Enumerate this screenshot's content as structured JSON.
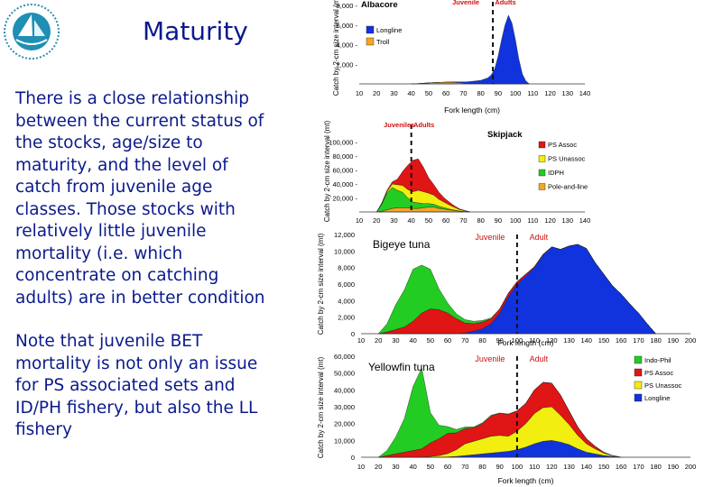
{
  "slide": {
    "title": "Maturity",
    "paragraph1": "There is a close relationship between the current status of the stocks, age/size to maturity, and the level of catch from juvenile age classes. Those stocks with relatively little juvenile mortality (i.e. which concentrate on catching adults) are in better condition",
    "paragraph2": "Note that juvenile BET mortality is not only an issue for PS associated sets and ID/PH fishery, but also the LL fishery"
  },
  "colors": {
    "text": "#0b1a8c",
    "longline": "#1133dd",
    "ps_assoc": "#e01515",
    "ps_unassoc": "#f2ee10",
    "indo_phil": "#22cc22",
    "troll": "#f5a623",
    "pole_and_line": "#f5a623",
    "juvenile_arrow": "#d01010"
  },
  "chart_data": [
    {
      "type": "area",
      "title": "Albacore",
      "ylabel": "Catch by 2-cm size interval (mt)",
      "xlabel": "Fork length (cm)",
      "xticks": [
        "10",
        "20",
        "30",
        "40",
        "50",
        "60",
        "70",
        "80",
        "90",
        "100",
        "110",
        "120",
        "130",
        "140"
      ],
      "yticks": [
        "2,000 -",
        "4,000 -",
        "6,000 -",
        "8,000 -"
      ],
      "ytick_values": [
        2000,
        4000,
        6000,
        8000
      ],
      "xlim": [
        10,
        140
      ],
      "ylim": [
        0,
        8000
      ],
      "annotations": {
        "juvenile": "Juvenile",
        "adult": "Adults"
      },
      "maturity_cm": 87,
      "x": [
        40,
        44,
        48,
        52,
        56,
        60,
        64,
        68,
        72,
        76,
        80,
        84,
        86,
        88,
        90,
        92,
        94,
        96,
        98,
        100,
        102,
        104,
        106,
        108
      ],
      "series": [
        {
          "name": "Troll",
          "values": [
            0,
            30,
            80,
            120,
            150,
            180,
            160,
            120,
            60,
            30,
            10,
            0,
            0,
            0,
            0,
            0,
            0,
            0,
            0,
            0,
            0,
            0,
            0,
            0
          ]
        },
        {
          "name": "Longline",
          "values": [
            0,
            0,
            0,
            0,
            0,
            0,
            50,
            80,
            150,
            250,
            350,
            600,
            900,
            1500,
            2800,
            4500,
            6000,
            7000,
            6200,
            4500,
            2500,
            1000,
            300,
            0
          ]
        }
      ]
    },
    {
      "type": "area",
      "title": "Skipjack",
      "ylabel": "Catch by 2-cm size interval (mt)",
      "xlabel": "Fork length (cm)",
      "xticks": [
        "10",
        "20",
        "30",
        "40",
        "50",
        "60",
        "70",
        "80",
        "90",
        "100",
        "110",
        "120",
        "130",
        "140"
      ],
      "yticks": [
        "100,000 -",
        "80,000 -",
        "60,000 -",
        "40,000 -",
        "20,000 -"
      ],
      "ytick_values": [
        100000,
        80000,
        60000,
        40000,
        20000
      ],
      "xlim": [
        10,
        140
      ],
      "ylim": [
        0,
        120000
      ],
      "annotations": {
        "juvenile": "Juveniles",
        "adult": "Adults"
      },
      "maturity_cm": 40,
      "x": [
        20,
        23,
        26,
        29,
        32,
        35,
        38,
        41,
        44,
        47,
        50,
        53,
        56,
        59,
        62,
        65,
        68,
        71,
        74
      ],
      "series": [
        {
          "name": "Pole-and-line",
          "values": [
            0,
            1000,
            3000,
            5000,
            6000,
            6000,
            6000,
            5000,
            5000,
            6000,
            7000,
            7000,
            5000,
            4000,
            3000,
            2000,
            1000,
            500,
            0
          ]
        },
        {
          "name": "IDPH",
          "values": [
            0,
            10000,
            24000,
            30000,
            25000,
            22000,
            14000,
            9000,
            8000,
            6000,
            5000,
            4000,
            3000,
            2000,
            1000,
            500,
            200,
            0,
            0
          ]
        },
        {
          "name": "PS Unassoc",
          "values": [
            0,
            1000,
            2000,
            5000,
            8000,
            10000,
            12000,
            15000,
            18000,
            17000,
            15000,
            13000,
            10000,
            8000,
            6000,
            4000,
            2000,
            1000,
            0
          ]
        },
        {
          "name": "PS Assoc",
          "values": [
            0,
            1000,
            2000,
            3000,
            8000,
            20000,
            35000,
            45000,
            45000,
            35000,
            22000,
            15000,
            10000,
            6000,
            4000,
            2000,
            1000,
            500,
            0
          ]
        }
      ],
      "legend": [
        "PS Assoc",
        "PS Unassoc",
        "IDPH",
        "Pole-and-line"
      ]
    },
    {
      "type": "area",
      "title": "Bigeye tuna",
      "ylabel": "Catch by 2-cm size interval (mt)",
      "xlabel": "Fork length (cm)",
      "xticks": [
        "10",
        "20",
        "30",
        "40",
        "50",
        "60",
        "70",
        "80",
        "90",
        "100",
        "110",
        "120",
        "130",
        "140",
        "150",
        "160",
        "170",
        "180",
        "190",
        "200"
      ],
      "yticks": [
        "12,000",
        "10,000",
        "8,000",
        "6,000",
        "4,000",
        "2,000",
        "0"
      ],
      "ytick_values": [
        12000,
        10000,
        8000,
        6000,
        4000,
        2000,
        0
      ],
      "xlim": [
        10,
        200
      ],
      "ylim": [
        0,
        12000
      ],
      "annotations": {
        "juvenile": "Juvenile",
        "adult": "Adult"
      },
      "maturity_cm": 100,
      "x": [
        20,
        25,
        30,
        35,
        40,
        45,
        50,
        55,
        60,
        65,
        70,
        75,
        80,
        85,
        90,
        95,
        100,
        105,
        110,
        115,
        120,
        125,
        130,
        135,
        140,
        145,
        150,
        155,
        160,
        165,
        170,
        175,
        180
      ],
      "series": [
        {
          "name": "Longline",
          "values": [
            0,
            0,
            0,
            0,
            0,
            0,
            0,
            0,
            0,
            0,
            100,
            300,
            600,
            1200,
            2500,
            4500,
            6000,
            7000,
            8000,
            9500,
            10500,
            10200,
            10600,
            10800,
            10300,
            8600,
            7200,
            5800,
            4800,
            3600,
            2500,
            1200,
            0
          ]
        },
        {
          "name": "PS Assoc",
          "values": [
            0,
            200,
            500,
            800,
            1500,
            2500,
            3000,
            2900,
            2500,
            1800,
            1200,
            900,
            800,
            600,
            500,
            400,
            300,
            200,
            100,
            100,
            0,
            0,
            0,
            0,
            0,
            0,
            0,
            0,
            0,
            0,
            0,
            0,
            0
          ]
        },
        {
          "name": "Indo-Phil",
          "values": [
            0,
            1000,
            3000,
            4500,
            6300,
            5800,
            4800,
            2500,
            1200,
            600,
            400,
            300,
            200,
            100,
            0,
            0,
            0,
            0,
            0,
            0,
            0,
            0,
            0,
            0,
            0,
            0,
            0,
            0,
            0,
            0,
            0,
            0,
            0
          ]
        }
      ]
    },
    {
      "type": "area",
      "title": "Yellowfin tuna",
      "ylabel": "Catch by 2-cm size interval (mt)",
      "xlabel": "Fork length (cm)",
      "xticks": [
        "10",
        "20",
        "30",
        "40",
        "50",
        "60",
        "70",
        "80",
        "90",
        "100",
        "110",
        "120",
        "130",
        "140",
        "150",
        "160",
        "170",
        "180",
        "190",
        "200"
      ],
      "yticks": [
        "60,000",
        "50,000",
        "40,000",
        "30,000",
        "20,000",
        "10,000",
        "0"
      ],
      "ytick_values": [
        60000,
        50000,
        40000,
        30000,
        20000,
        10000,
        0
      ],
      "xlim": [
        10,
        200
      ],
      "ylim": [
        0,
        60000
      ],
      "annotations": {
        "juvenile": "Juvenile",
        "adult": "Adult"
      },
      "maturity_cm": 100,
      "x": [
        20,
        25,
        30,
        35,
        40,
        45,
        50,
        55,
        60,
        65,
        70,
        75,
        80,
        85,
        90,
        95,
        100,
        105,
        110,
        115,
        120,
        125,
        130,
        135,
        140,
        145,
        150,
        155,
        160
      ],
      "series": [
        {
          "name": "Longline",
          "values": [
            0,
            0,
            0,
            0,
            0,
            0,
            0,
            0,
            200,
            500,
            1000,
            1500,
            2000,
            2500,
            3000,
            3500,
            4500,
            6000,
            8000,
            9500,
            10000,
            9000,
            7500,
            5000,
            3000,
            2000,
            1000,
            500,
            0
          ]
        },
        {
          "name": "PS Unassoc",
          "values": [
            0,
            0,
            0,
            0,
            0,
            0,
            500,
            1000,
            2000,
            4000,
            7000,
            8000,
            9000,
            10000,
            10000,
            9000,
            11000,
            14000,
            18000,
            20000,
            20000,
            16000,
            12000,
            8000,
            5000,
            3000,
            1500,
            500,
            0
          ]
        },
        {
          "name": "PS Assoc",
          "values": [
            0,
            1000,
            2000,
            3000,
            4000,
            5000,
            8000,
            10000,
            12000,
            10000,
            9000,
            8000,
            9000,
            12000,
            13000,
            13000,
            12000,
            12000,
            14000,
            15000,
            14000,
            12000,
            8000,
            5000,
            3000,
            1500,
            500,
            0,
            0
          ]
        },
        {
          "name": "Indo-Phil",
          "values": [
            0,
            3000,
            10000,
            20000,
            38000,
            48000,
            18000,
            8000,
            4000,
            2000,
            1000,
            500,
            500,
            500,
            300,
            200,
            100,
            0,
            0,
            0,
            0,
            0,
            0,
            0,
            0,
            0,
            0,
            0,
            0
          ]
        }
      ],
      "legend": [
        "Indo-Phil",
        "PS Assoc",
        "PS Unassoc",
        "Longline"
      ]
    }
  ]
}
